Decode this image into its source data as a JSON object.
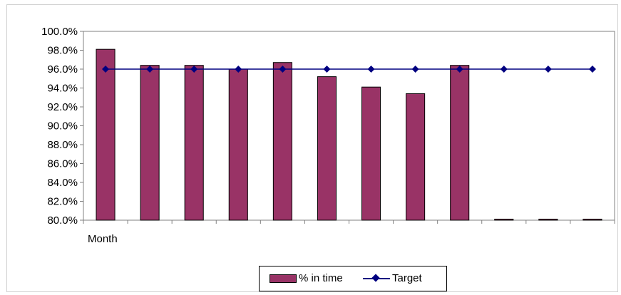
{
  "chart_data": {
    "type": "bar",
    "xlabel": "Month",
    "categories": [
      "",
      "",
      "",
      "",
      "",
      "",
      "",
      "",
      "",
      "",
      "",
      ""
    ],
    "series": [
      {
        "name": "% in time",
        "type": "bar",
        "color": "#993366",
        "values": [
          98.1,
          96.4,
          96.4,
          96.0,
          96.7,
          95.2,
          94.1,
          93.4,
          96.4,
          80.0,
          80.0,
          80.0
        ]
      },
      {
        "name": "Target",
        "type": "line",
        "color": "#000080",
        "marker": "diamond",
        "values": [
          96.0,
          96.0,
          96.0,
          96.0,
          96.0,
          96.0,
          96.0,
          96.0,
          96.0,
          96.0,
          96.0,
          96.0
        ]
      }
    ],
    "ylim": [
      80.0,
      100.0
    ],
    "yticks": [
      "80.0%",
      "82.0%",
      "84.0%",
      "86.0%",
      "88.0%",
      "90.0%",
      "92.0%",
      "94.0%",
      "96.0%",
      "98.0%",
      "100.0%"
    ],
    "grid": false,
    "legend": "bottom"
  }
}
